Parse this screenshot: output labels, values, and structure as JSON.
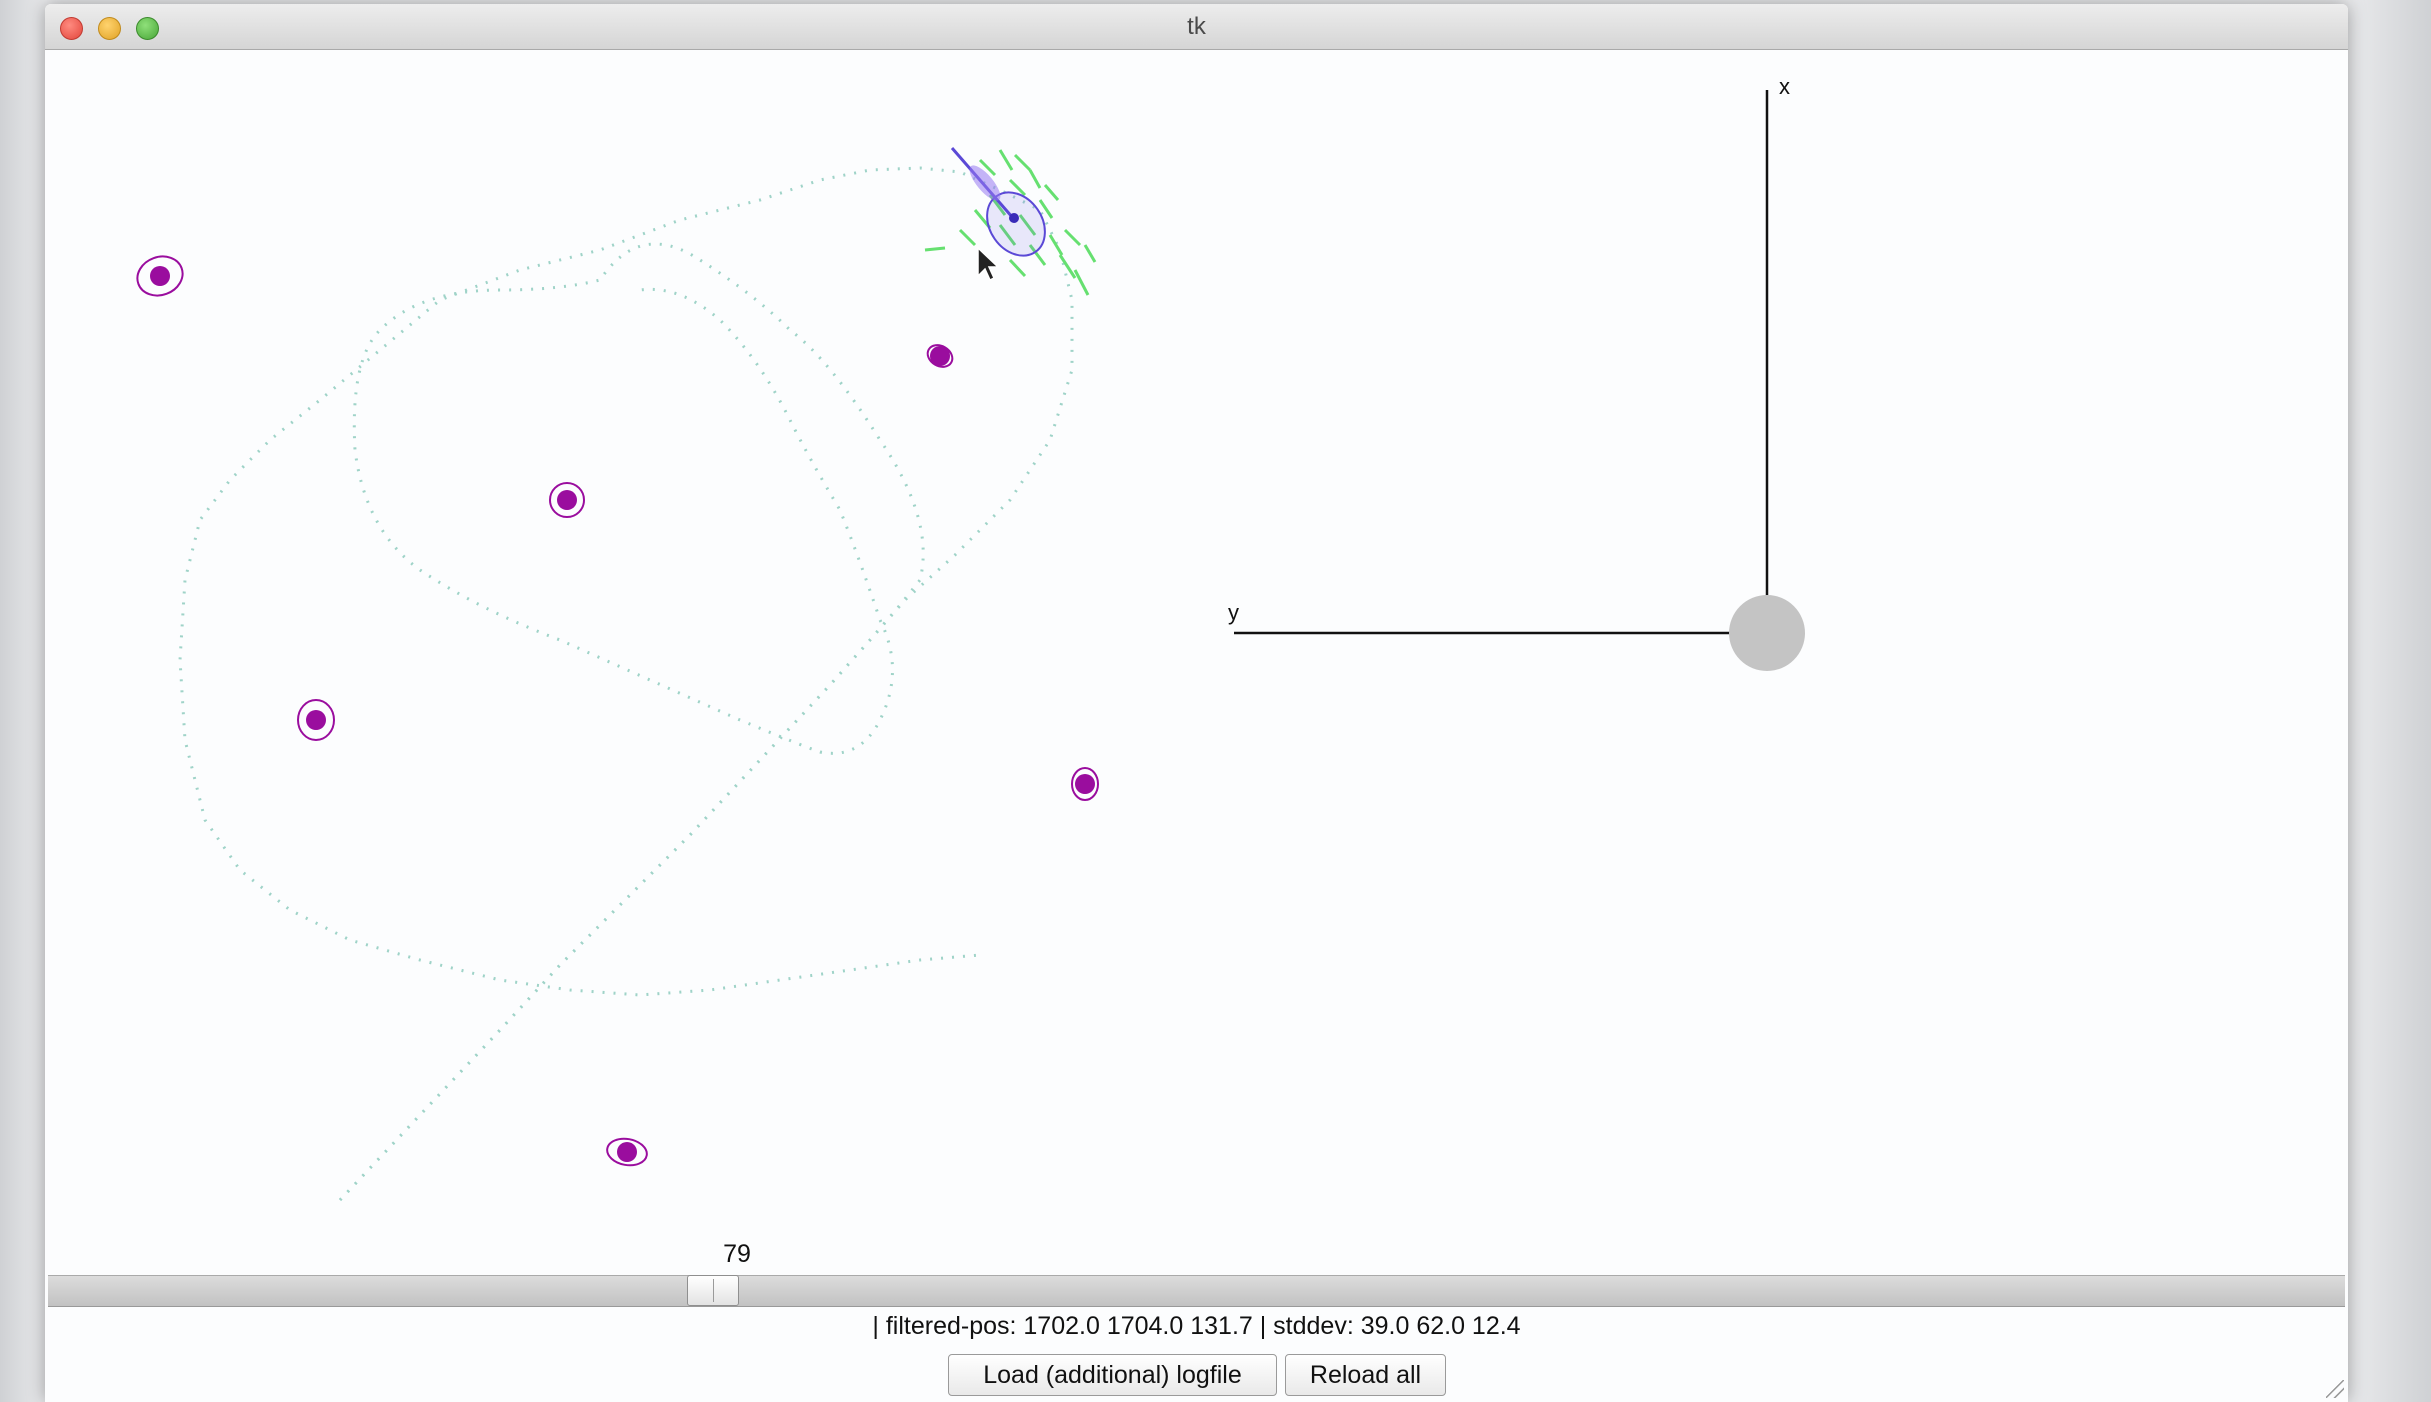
{
  "window": {
    "title": "tk"
  },
  "slider": {
    "value_label": "79"
  },
  "status": {
    "text": "| filtered-pos: 1702.0 1704.0 131.7 | stddev: 39.0 62.0 12.4"
  },
  "buttons": {
    "load_label": "Load (additional) logfile",
    "reload_label": "Reload all"
  },
  "axes": {
    "x_label": "x",
    "y_label": "y"
  },
  "colors": {
    "landmark": "#9a0d9e",
    "path": "#9fd3c8",
    "particles": "#66e070",
    "robot": "#5b49d6",
    "origin": "#c4c4c4"
  }
}
